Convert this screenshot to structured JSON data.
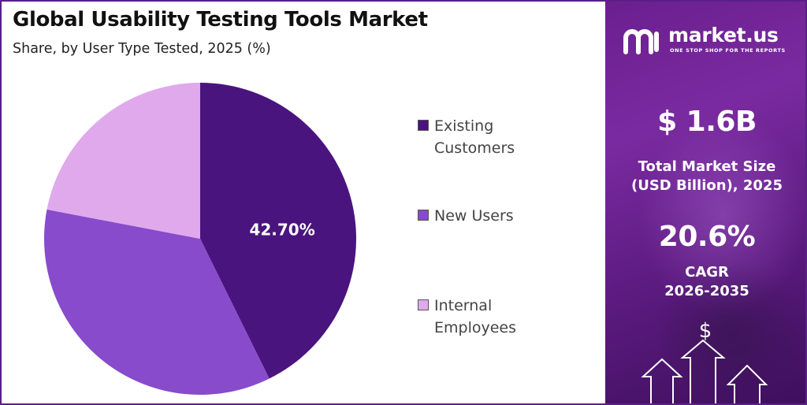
{
  "header": {
    "title": "Global Usability Testing Tools Market",
    "subtitle": "Share, by User Type Tested, 2025 (%)"
  },
  "chart_data": {
    "type": "pie",
    "title": "Global Usability Testing Tools Market",
    "subtitle": "Share, by User Type Tested, 2025 (%)",
    "categories": [
      "Existing Customers",
      "New Users",
      "Internal Employees"
    ],
    "values": [
      42.7,
      35.3,
      22.0
    ],
    "data_labels": [
      "42.70%",
      "",
      ""
    ],
    "colors": [
      "#4a147f",
      "#874bcc",
      "#dfa9ec"
    ],
    "legend_position": "right"
  },
  "legend": {
    "items": [
      {
        "label_line1": "Existing",
        "label_line2": "Customers",
        "color": "#4a147f"
      },
      {
        "label_line1": "New Users",
        "label_line2": "",
        "color": "#874bcc"
      },
      {
        "label_line1": "Internal",
        "label_line2": "Employees",
        "color": "#dfa9ec"
      }
    ]
  },
  "sidebar": {
    "brand": "market.us",
    "tagline": "ONE STOP SHOP FOR THE REPORTS",
    "market_size_value": "$ 1.6B",
    "market_size_label_1": "Total Market Size",
    "market_size_label_2": "(USD Billion), 2025",
    "cagr_value": "20.6%",
    "cagr_label_1": "CAGR",
    "cagr_label_2": "2026-2035",
    "dollar_symbol": "$",
    "background_color": "#6b1f8f"
  }
}
